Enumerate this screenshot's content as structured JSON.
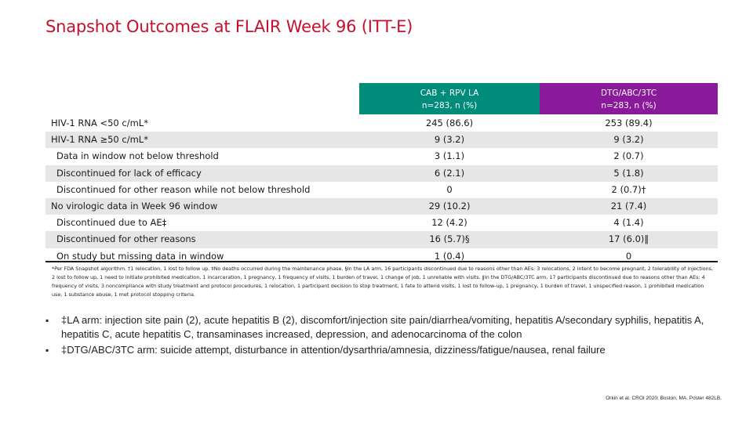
{
  "title": "Snapshot Outcomes at FLAIR Week 96 (ITT-E)",
  "columns": [
    {
      "name": "CAB + RPV LA",
      "n": "n=283, n (%)",
      "color": "#008c7a"
    },
    {
      "name": "DTG/ABC/3TC",
      "n": "n=283, n (%)",
      "color": "#8a1a9b"
    }
  ],
  "rows": [
    {
      "label": "HIV-1 RNA <50 c/mL*",
      "cab": "245 (86.6)",
      "dtg": "253 (89.4)"
    },
    {
      "label": "HIV-1 RNA ≥50 c/mL*",
      "cab": "9 (3.2)",
      "dtg": "9 (3.2)"
    },
    {
      "label": "Data in window not below threshold",
      "cab": "3 (1.1)",
      "dtg": "2 (0.7)"
    },
    {
      "label": "Discontinued for lack of efficacy",
      "cab": "6 (2.1)",
      "dtg": "5 (1.8)"
    },
    {
      "label": "Discontinued for other reason while not below threshold",
      "cab": "0",
      "dtg": "2 (0.7)†"
    },
    {
      "label": "No virologic data in Week 96 window",
      "cab": "29 (10.2)",
      "dtg": "21 (7.4)"
    },
    {
      "label": "Discontinued due to AE‡",
      "cab": "12 (4.2)",
      "dtg": "4 (1.4)"
    },
    {
      "label": "Discontinued for other reasons",
      "cab": "16 (5.7)§",
      "dtg": "17 (6.0)‖"
    },
    {
      "label": "On study but missing data in window",
      "cab": "1 (0.4)",
      "dtg": "0"
    }
  ],
  "footnote": "*Per FDA Snapshot algorithm. †1 relocation, 1 lost to follow up. ‡No deaths occurred during the maintenance phase. §In the LA arm, 16 participants discontinued due to reasons other than AEs: 3 relocations, 2 intent to become pregnant, 2 tolerability of injections, 2 lost to follow up, 1 need to initiate prohibited medication, 1 incarceration, 1 pregnancy, 1 frequency of visits, 1 burden of travel, 1 change of job, 1 unreliable with visits. ‖In the DTG/ABC/3TC arm, 17 participants discontinued due to reasons other than AEs: 4 frequency of visits, 3 noncompliance with study treatment and protocol procedures, 1 relocation, 1 participant decision to stop treatment, 1 fate to attend visits, 1 lost to follow-up, 1 pregnancy, 1 burden of travel, 1 unspecified reason, 1 prohibited medication use, 1 substance abuse, 1 met protocol stopping criteria.",
  "bullets": [
    {
      "marker": "▪",
      "text": "‡LA arm: injection site pain (2), acute hepatitis B (2), discomfort/injection site pain/diarrhea/vomiting, hepatitis A/secondary syphilis, hepatitis A, hepatitis C, acute hepatitis C, transaminases increased, depression, and  adenocarcinoma of the colon"
    },
    {
      "marker": "▪",
      "text": "‡DTG/ABC/3TC arm: suicide attempt, disturbance in attention/dysarthria/amnesia, dizziness/fatigue/nausea, renal failure"
    }
  ],
  "citation": "Orkin et al. CROI 2020; Boston, MA. Poster 482LB."
}
